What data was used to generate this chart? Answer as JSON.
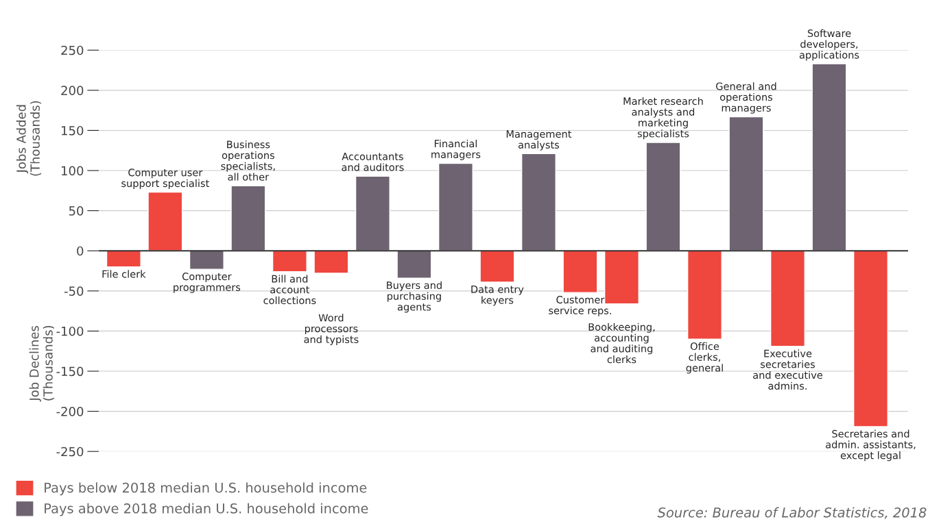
{
  "chart_data": {
    "type": "bar",
    "categories": [
      "File clerk",
      "Computer user\nsupport specialist",
      "Computer\nprogrammers",
      "Business\noperations\nspecialists,\nall other",
      "Bill and\naccount\ncollections",
      "Word\nprocessors\nand typists",
      "Accountants\nand auditors",
      "Buyers and\npurchasing\nagents",
      "Financial\nmanagers",
      "Data entry\nkeyers",
      "Management\nanalysts",
      "Customer\nservice reps.",
      "Bookkeeping,\naccounting\nand auditing\nclerks",
      "Market research\nanalysts and\nmarketing\nspecialists",
      "Office\nclerks,\ngeneral",
      "General and\noperations\nmanagers",
      "Executive\nsecretaries\nand executive\nadmins.",
      "Software\ndevelopers,\napplications",
      "Secretaries and\nadmin. assistants,\nexcept legal"
    ],
    "series": [
      {
        "name": "Pays below 2018 median U.S. household income",
        "color": "#ef463e",
        "values": [
          -20,
          73,
          null,
          null,
          -26,
          -28,
          null,
          null,
          null,
          -39,
          null,
          -52,
          -66,
          null,
          -110,
          null,
          -119,
          null,
          -219
        ]
      },
      {
        "name": "Pays above 2018 median U.S. household income",
        "color": "#6e6370",
        "values": [
          null,
          null,
          -23,
          81,
          null,
          null,
          93,
          -34,
          109,
          null,
          121,
          null,
          null,
          135,
          null,
          167,
          null,
          233,
          null
        ]
      }
    ],
    "ylabel": "Jobs Added\n(Thousands)",
    "annotations": [
      "Job Declines\n(Thousands)",
      "Source: Bureau of Labor Statistics, 2018"
    ],
    "ylim": [
      -250,
      250
    ],
    "yticks": [
      -250,
      -200,
      -150,
      -100,
      -50,
      0,
      50,
      100,
      150,
      200,
      250
    ],
    "grid": "y",
    "legend": "bottom left",
    "tick_labels": "y"
  }
}
